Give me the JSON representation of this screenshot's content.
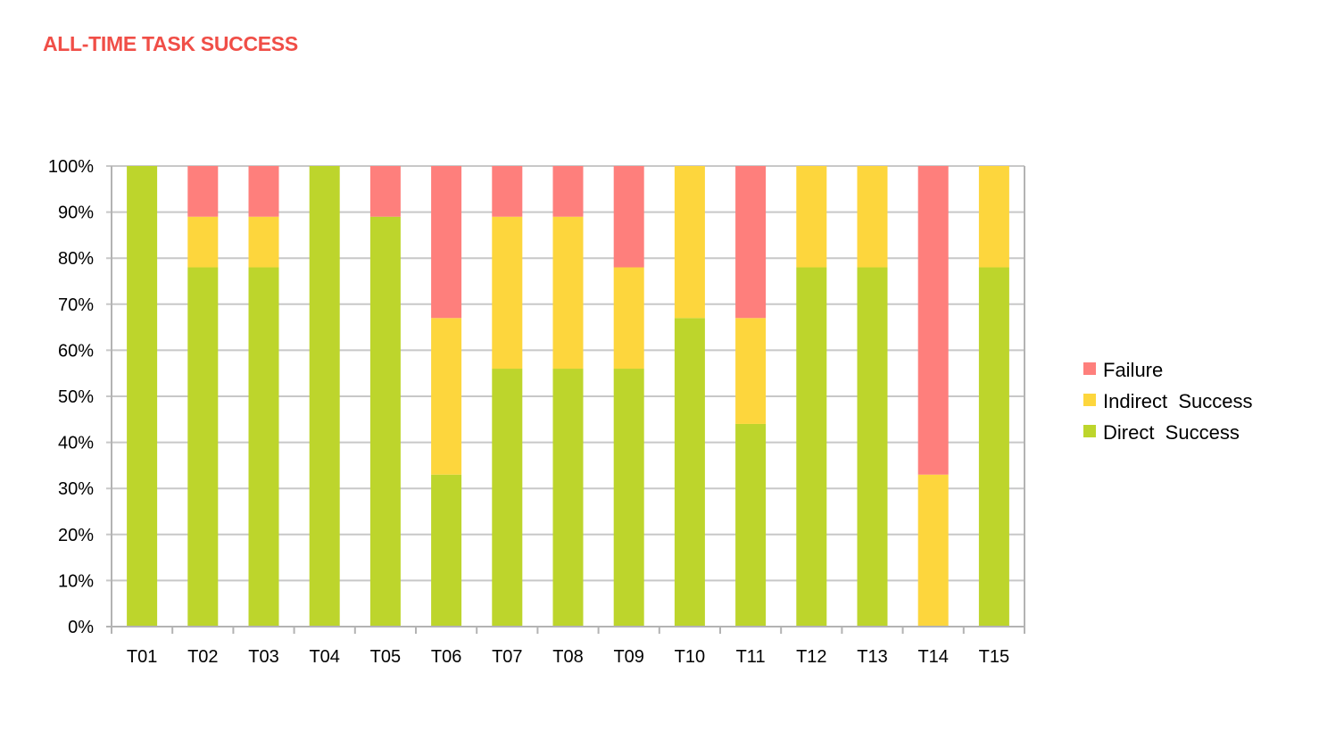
{
  "page": {
    "title": "ALL-TIME TASK SUCCESS"
  },
  "colors": {
    "title": "#f04e47",
    "failure": "#fe7f7c",
    "indirect": "#fdd63d",
    "direct": "#bdd52c",
    "grid": "#c8c8c8",
    "axis": "#b3b3b3"
  },
  "chart_data": {
    "type": "bar",
    "stacked": true,
    "categories": [
      "T01",
      "T02",
      "T03",
      "T04",
      "T05",
      "T06",
      "T07",
      "T08",
      "T09",
      "T10",
      "T11",
      "T12",
      "T13",
      "T14",
      "T15"
    ],
    "series": [
      {
        "name": "Direct  Success",
        "color": "#bdd52c",
        "values": [
          100,
          78,
          78,
          100,
          89,
          33,
          56,
          56,
          56,
          67,
          44,
          78,
          78,
          0,
          78
        ]
      },
      {
        "name": "Indirect  Success",
        "color": "#fdd63d",
        "values": [
          0,
          11,
          11,
          0,
          0,
          34,
          33,
          33,
          22,
          33,
          23,
          22,
          22,
          33,
          22
        ]
      },
      {
        "name": "Failure",
        "color": "#fe7f7c",
        "values": [
          0,
          11,
          11,
          0,
          11,
          33,
          11,
          11,
          22,
          0,
          33,
          0,
          0,
          67,
          0
        ]
      }
    ],
    "ylim": [
      0,
      100
    ],
    "yticks": [
      "0%",
      "10%",
      "20%",
      "30%",
      "40%",
      "50%",
      "60%",
      "70%",
      "80%",
      "90%",
      "100%"
    ],
    "grid": true,
    "legend_position": "right",
    "legend_order": [
      "Failure",
      "Indirect  Success",
      "Direct  Success"
    ]
  }
}
